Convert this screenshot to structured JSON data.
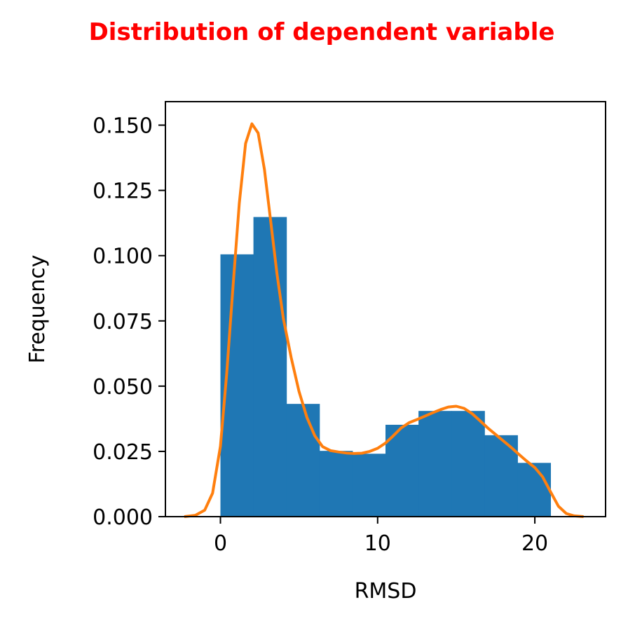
{
  "chart_data": {
    "type": "bar",
    "title": "Distribution of dependent variable",
    "title_color": "#ff0000",
    "xlabel": "RMSD",
    "ylabel": "Frequency",
    "xlim": [
      -3.5,
      24.5
    ],
    "ylim": [
      0,
      0.159
    ],
    "x_ticks": [
      0,
      10,
      20
    ],
    "x_tick_labels": [
      "0",
      "10",
      "20"
    ],
    "y_ticks": [
      0,
      0.025,
      0.05,
      0.075,
      0.1,
      0.125,
      0.15
    ],
    "y_tick_labels": [
      "0.000",
      "0.025",
      "0.050",
      "0.075",
      "0.100",
      "0.125",
      "0.150"
    ],
    "grid": false,
    "bar_color": "#1f77b4",
    "line_color": "#ff7f0e",
    "series": [
      {
        "type": "histogram",
        "bins": [
          {
            "x0": 0.0,
            "x1": 2.1,
            "value": 0.1005
          },
          {
            "x0": 2.1,
            "x1": 4.2,
            "value": 0.1148
          },
          {
            "x0": 4.2,
            "x1": 6.3,
            "value": 0.0432
          },
          {
            "x0": 6.3,
            "x1": 8.4,
            "value": 0.0252
          },
          {
            "x0": 8.4,
            "x1": 10.5,
            "value": 0.0241
          },
          {
            "x0": 10.5,
            "x1": 12.6,
            "value": 0.0352
          },
          {
            "x0": 12.6,
            "x1": 14.7,
            "value": 0.0405
          },
          {
            "x0": 14.7,
            "x1": 16.8,
            "value": 0.0405
          },
          {
            "x0": 16.8,
            "x1": 18.9,
            "value": 0.0312
          },
          {
            "x0": 18.9,
            "x1": 21.0,
            "value": 0.0206
          }
        ]
      },
      {
        "type": "line",
        "x": [
          -2.3,
          -1.6,
          -1.0,
          -0.5,
          0.0,
          0.4,
          0.8,
          1.2,
          1.6,
          2.0,
          2.4,
          2.8,
          3.2,
          3.6,
          4.0,
          4.5,
          5.0,
          5.5,
          6.0,
          6.5,
          7.0,
          7.5,
          8.0,
          8.5,
          9.0,
          9.5,
          10.0,
          10.5,
          11.0,
          11.5,
          12.0,
          12.5,
          13.0,
          13.5,
          14.0,
          14.5,
          15.0,
          15.5,
          16.0,
          16.5,
          17.0,
          17.5,
          18.0,
          18.5,
          19.0,
          19.5,
          20.0,
          20.5,
          21.0,
          21.5,
          22.0,
          22.5,
          23.1
        ],
        "y": [
          0.0,
          0.0005,
          0.0025,
          0.009,
          0.027,
          0.055,
          0.088,
          0.12,
          0.143,
          0.1505,
          0.147,
          0.133,
          0.113,
          0.093,
          0.076,
          0.061,
          0.048,
          0.038,
          0.031,
          0.0268,
          0.0253,
          0.0248,
          0.0244,
          0.0242,
          0.0243,
          0.025,
          0.0262,
          0.0282,
          0.031,
          0.034,
          0.036,
          0.0372,
          0.0385,
          0.0398,
          0.041,
          0.042,
          0.0423,
          0.0415,
          0.0395,
          0.0368,
          0.034,
          0.0315,
          0.029,
          0.0265,
          0.0238,
          0.0212,
          0.0188,
          0.0152,
          0.0095,
          0.004,
          0.0012,
          0.0003,
          0.0
        ]
      }
    ]
  }
}
